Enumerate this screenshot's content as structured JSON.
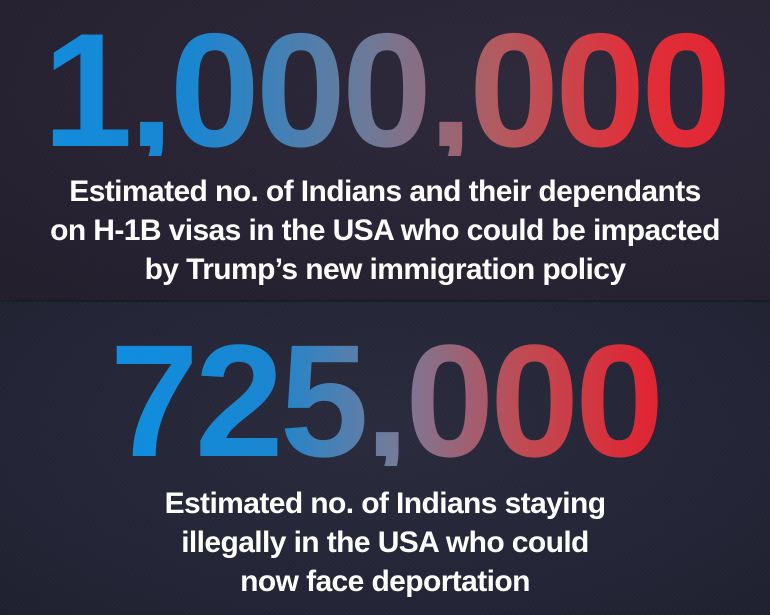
{
  "colors": {
    "blue": "#0f8ee0",
    "red": "#e32230",
    "background_top": "#272333",
    "background_bottom": "#232536",
    "text": "#ffffff"
  },
  "stat1": {
    "number": "1,000,000",
    "caption_lines": [
      "Estimated no. of Indians and their dependants",
      "on H-1B visas in the USA who could be impacted",
      "by Trump’s new immigration policy"
    ]
  },
  "stat2": {
    "number": "725,000",
    "caption_lines": [
      "Estimated no. of Indians staying",
      "illegally in the USA who could",
      "now face deportation"
    ]
  }
}
